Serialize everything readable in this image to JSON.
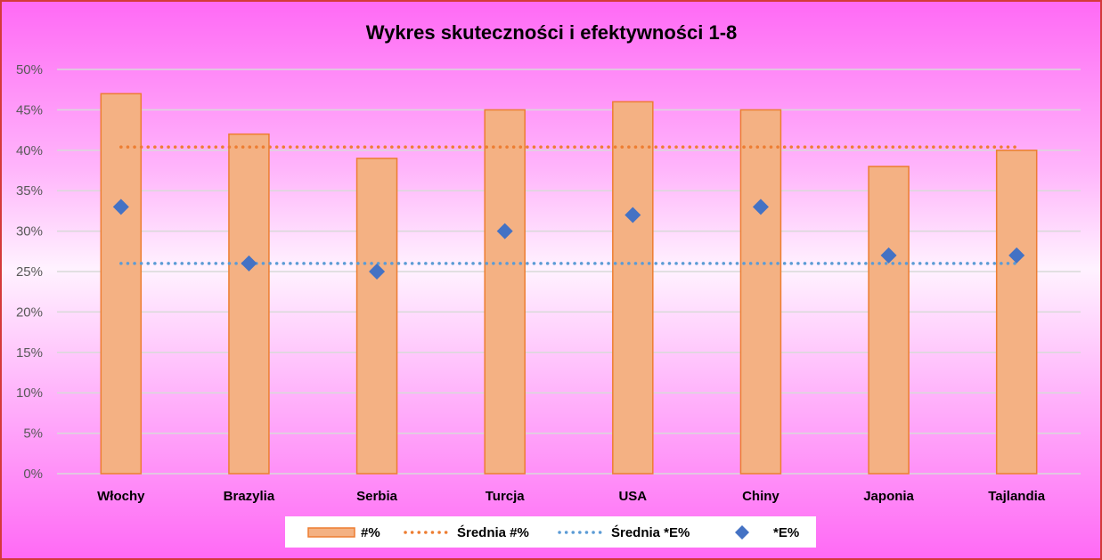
{
  "chart_data": {
    "type": "bar",
    "title": "Wykres skuteczności i efektywności 1-8",
    "categories": [
      "Włochy",
      "Brazylia",
      "Serbia",
      "Turcja",
      "USA",
      "Chiny",
      "Japonia",
      "Tajlandia"
    ],
    "y_ticks": [
      "0%",
      "5%",
      "10%",
      "15%",
      "20%",
      "25%",
      "30%",
      "35%",
      "40%",
      "45%",
      "50%"
    ],
    "ylim": [
      0,
      50
    ],
    "grid": true,
    "legend_position": "bottom",
    "series": [
      {
        "name": "#%",
        "type": "bar",
        "color": "#f4b183",
        "edge_color": "#ed7d31",
        "values": [
          47,
          42,
          39,
          45,
          46,
          45,
          38,
          40
        ]
      },
      {
        "name": "Średnia #%",
        "type": "line",
        "style": "dotted",
        "color": "#ed7d31",
        "values": [
          40.4,
          40.4,
          40.4,
          40.4,
          40.4,
          40.4,
          40.4,
          40.4
        ]
      },
      {
        "name": "Średnia *E%",
        "type": "line",
        "style": "dotted",
        "color": "#5b9bd5",
        "values": [
          26,
          26,
          26,
          26,
          26,
          26,
          26,
          26
        ]
      },
      {
        "name": "*E%",
        "type": "scatter",
        "marker": "diamond",
        "color": "#4472c4",
        "values": [
          33,
          26,
          25,
          30,
          32,
          33,
          27,
          27
        ]
      }
    ]
  }
}
